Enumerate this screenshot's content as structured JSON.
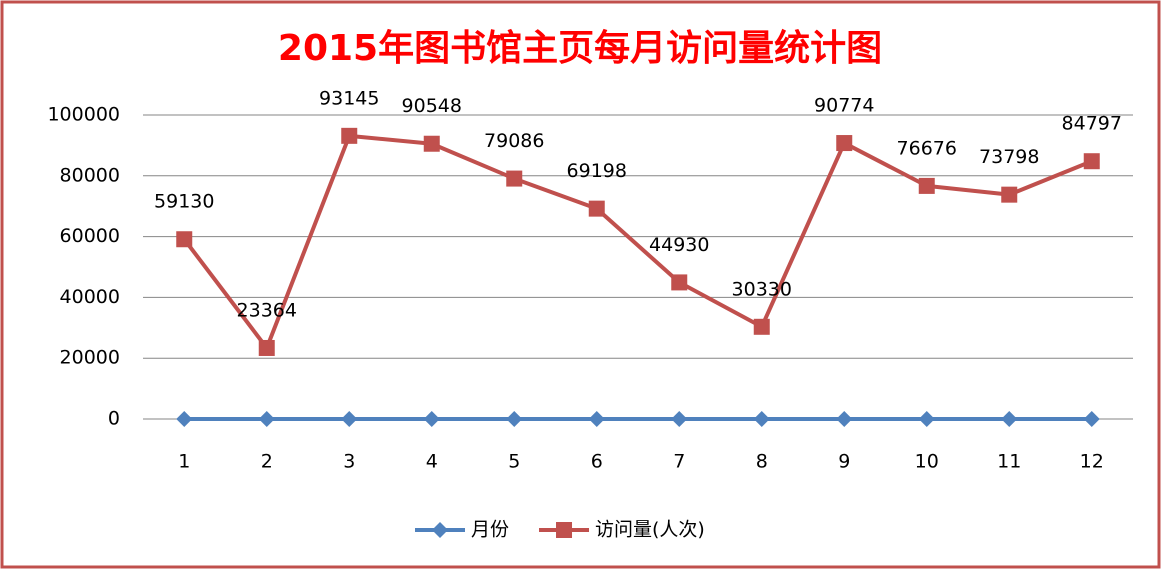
{
  "chart_data": {
    "type": "line",
    "title": "2015年图书馆主页每月访问量统计图",
    "categories": [
      "1",
      "2",
      "3",
      "4",
      "5",
      "6",
      "7",
      "8",
      "9",
      "10",
      "11",
      "12"
    ],
    "series": [
      {
        "name": "月份",
        "color": "#4f81bd",
        "marker": "diamond",
        "values": [
          1,
          2,
          3,
          4,
          5,
          6,
          7,
          8,
          9,
          10,
          11,
          12
        ]
      },
      {
        "name": "访问量(人次)",
        "color": "#c0504d",
        "marker": "square",
        "values": [
          59130,
          23364,
          93145,
          90548,
          79086,
          69198,
          44930,
          30330,
          90774,
          76676,
          73798,
          84797
        ],
        "data_labels": true
      }
    ],
    "ylim": [
      0,
      100000
    ],
    "yticks": [
      0,
      20000,
      40000,
      60000,
      80000,
      100000
    ],
    "grid": true,
    "legend": "bottom"
  }
}
